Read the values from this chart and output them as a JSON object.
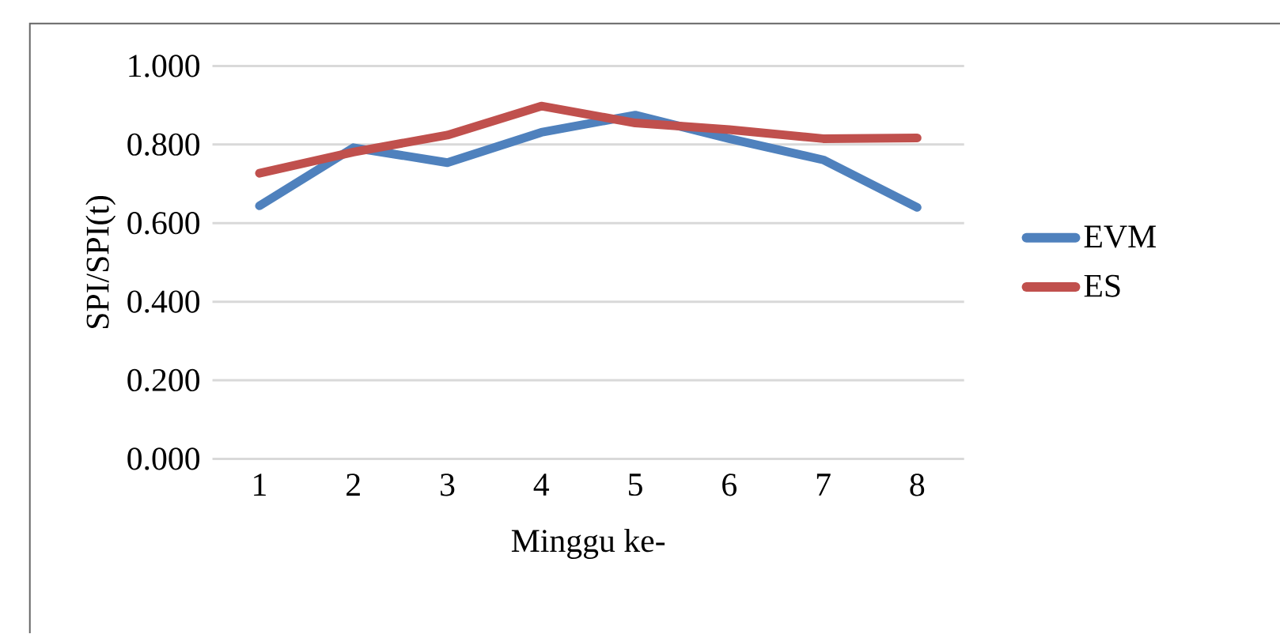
{
  "chart_data": {
    "type": "line",
    "xlabel": "Minggu ke-",
    "ylabel": "SPI/SPI(t)",
    "categories": [
      "1",
      "2",
      "3",
      "4",
      "5",
      "6",
      "7",
      "8"
    ],
    "series": [
      {
        "name": "EVM",
        "color": "#4f81bd",
        "values": [
          0.644,
          0.792,
          0.754,
          0.831,
          0.875,
          0.815,
          0.761,
          0.64
        ]
      },
      {
        "name": "ES",
        "color": "#c0504d",
        "values": [
          0.727,
          0.781,
          0.824,
          0.898,
          0.855,
          0.838,
          0.815,
          0.817
        ]
      }
    ],
    "ylim": [
      0,
      1
    ],
    "yticks": [
      {
        "value": 0,
        "label": "0.000"
      },
      {
        "value": 0.2,
        "label": "0.200"
      },
      {
        "value": 0.4,
        "label": "0.400"
      },
      {
        "value": 0.6,
        "label": "0.600"
      },
      {
        "value": 0.8,
        "label": "0.800"
      },
      {
        "value": 1,
        "label": "1.000"
      }
    ],
    "grid": "y",
    "legend": "right",
    "marker": "none",
    "line_style": "solid"
  }
}
